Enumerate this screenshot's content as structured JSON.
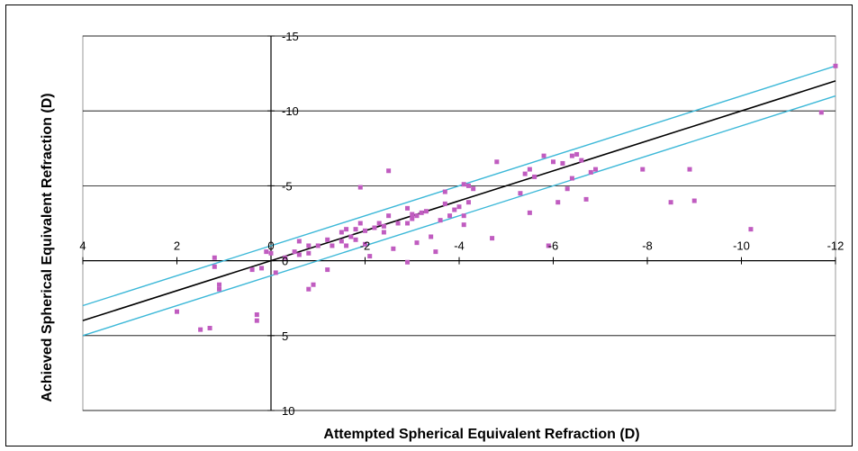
{
  "chart_data": {
    "type": "scatter",
    "title": "",
    "xlabel": "Attempted Spherical Equivalent Refraction (D)",
    "ylabel": "Achieved Spherical Equivalent Refraction (D)",
    "xlim": [
      4,
      -12
    ],
    "ylim": [
      10,
      -15
    ],
    "grid": true,
    "x_ticks": [
      "4",
      "2",
      "0",
      "-2",
      "-4",
      "-6",
      "-8",
      "-10",
      "-12"
    ],
    "y_ticks": [
      "-15",
      "-10",
      "-5",
      "0",
      "5",
      "10"
    ],
    "colors": {
      "points": "#c05cc0",
      "identity_line": "#000000",
      "bounds": "#3cb8d8",
      "grid": "#000000"
    },
    "lines": [
      {
        "role": "identity",
        "x": [
          4,
          -12
        ],
        "y": [
          4,
          -12
        ]
      },
      {
        "role": "upper-bound",
        "x": [
          4,
          -12
        ],
        "y": [
          3,
          -13
        ]
      },
      {
        "role": "lower-bound",
        "x": [
          4,
          -12
        ],
        "y": [
          5,
          -11
        ]
      }
    ],
    "series": [
      {
        "points": [
          [
            -11.7,
            -9.9
          ],
          [
            -12,
            -13
          ],
          [
            -10.2,
            -2.1
          ],
          [
            -9.0,
            -4.0
          ],
          [
            -8.9,
            -6.1
          ],
          [
            -8.5,
            -3.9
          ],
          [
            -7.9,
            -6.1
          ],
          [
            -6.9,
            -6.1
          ],
          [
            -6.8,
            -5.9
          ],
          [
            -6.7,
            -4.1
          ],
          [
            -6.6,
            -6.7
          ],
          [
            -6.4,
            -5.5
          ],
          [
            -6.5,
            -7.1
          ],
          [
            -6.4,
            -7.0
          ],
          [
            -6.3,
            -4.8
          ],
          [
            -6.2,
            -6.5
          ],
          [
            -6.1,
            -3.9
          ],
          [
            -6.0,
            -6.6
          ],
          [
            -5.8,
            -7.0
          ],
          [
            -5.9,
            -1.0
          ],
          [
            -5.6,
            -5.6
          ],
          [
            -5.5,
            -6.1
          ],
          [
            -5.5,
            -3.2
          ],
          [
            -5.3,
            -4.5
          ],
          [
            -5.4,
            -5.8
          ],
          [
            -4.8,
            -6.6
          ],
          [
            -4.7,
            -1.5
          ],
          [
            -4.3,
            -4.8
          ],
          [
            -4.2,
            -5.0
          ],
          [
            -4.2,
            -3.9
          ],
          [
            -4.1,
            -5.1
          ],
          [
            -4.1,
            -3.0
          ],
          [
            -4.1,
            -2.4
          ],
          [
            -4.0,
            -3.6
          ],
          [
            -3.9,
            -3.4
          ],
          [
            -3.8,
            -3.0
          ],
          [
            -3.7,
            -3.8
          ],
          [
            -3.7,
            -4.6
          ],
          [
            -3.6,
            -2.7
          ],
          [
            -3.5,
            -0.6
          ],
          [
            -3.4,
            -1.6
          ],
          [
            -3.3,
            -3.3
          ],
          [
            -3.2,
            -3.2
          ],
          [
            -3.1,
            -1.2
          ],
          [
            -3.1,
            -3.0
          ],
          [
            -3.0,
            -3.1
          ],
          [
            -3.0,
            -2.8
          ],
          [
            -2.9,
            -2.5
          ],
          [
            -2.9,
            -3.5
          ],
          [
            -2.9,
            0.1
          ],
          [
            -2.7,
            -2.5
          ],
          [
            -2.6,
            -0.8
          ],
          [
            -2.5,
            -3.0
          ],
          [
            -2.5,
            -6.0
          ],
          [
            -2.4,
            -1.9
          ],
          [
            -2.4,
            -2.3
          ],
          [
            -2.3,
            -2.5
          ],
          [
            -2.2,
            -2.2
          ],
          [
            -2.1,
            -0.3
          ],
          [
            -2.0,
            -1.1
          ],
          [
            -2.0,
            -2.0
          ],
          [
            -1.9,
            -2.5
          ],
          [
            -1.9,
            -4.9
          ],
          [
            -1.8,
            -2.1
          ],
          [
            -1.8,
            -1.4
          ],
          [
            -1.7,
            -1.6
          ],
          [
            -1.6,
            -2.1
          ],
          [
            -1.6,
            -1.0
          ],
          [
            -1.5,
            -1.9
          ],
          [
            -1.5,
            -1.3
          ],
          [
            -1.3,
            -1.0
          ],
          [
            -1.2,
            -1.4
          ],
          [
            -1.2,
            0.6
          ],
          [
            -1.0,
            -1.0
          ],
          [
            -0.9,
            1.6
          ],
          [
            -0.8,
            -1.0
          ],
          [
            -0.8,
            1.9
          ],
          [
            -0.8,
            -0.5
          ],
          [
            -0.6,
            -1.3
          ],
          [
            -0.6,
            -0.4
          ],
          [
            -0.5,
            -0.6
          ],
          [
            -0.3,
            -0.2
          ],
          [
            -0.1,
            0.8
          ],
          [
            0.0,
            -0.5
          ],
          [
            0.1,
            -0.6
          ],
          [
            0.2,
            0.5
          ],
          [
            0.3,
            3.6
          ],
          [
            0.3,
            4.0
          ],
          [
            0.4,
            0.6
          ],
          [
            1.1,
            1.6
          ],
          [
            1.2,
            0.4
          ],
          [
            1.1,
            1.9
          ],
          [
            1.2,
            -0.2
          ],
          [
            1.3,
            4.5
          ],
          [
            1.5,
            4.6
          ],
          [
            2.0,
            3.4
          ]
        ]
      }
    ]
  }
}
